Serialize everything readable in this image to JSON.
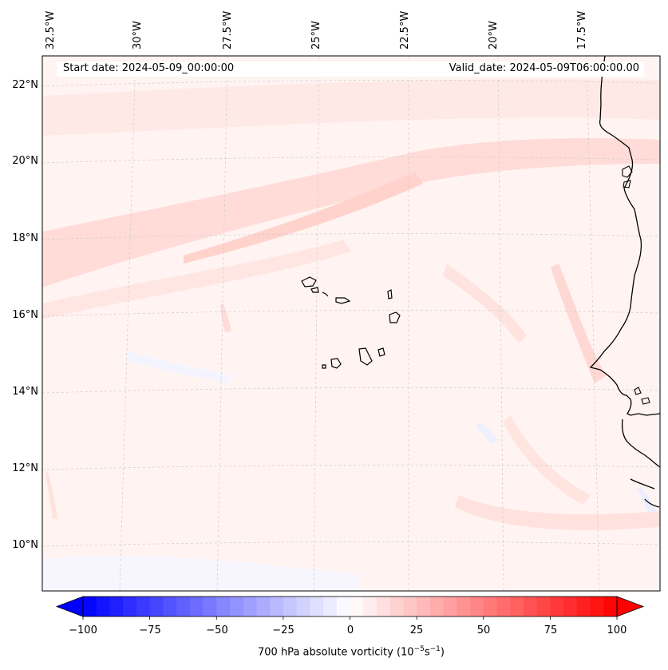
{
  "header": {
    "start_date": "Start date: 2024-05-09_00:00:00",
    "valid_date": "Valid_date: 2024-05-09T06:00:00.00"
  },
  "longitude_labels": [
    "32.5°W",
    "30°W",
    "27.5°W",
    "25°W",
    "22.5°W",
    "20°W",
    "17.5°W"
  ],
  "latitude_labels": [
    "22°N",
    "20°N",
    "18°N",
    "16°N",
    "14°N",
    "12°N",
    "10°N"
  ],
  "colorbar": {
    "ticks": [
      "−100",
      "−75",
      "−50",
      "−25",
      "0",
      "25",
      "50",
      "75",
      "100"
    ],
    "label_prefix": "700 hPa absolute vorticity (10",
    "label_exp1": "−5",
    "label_mid": "s",
    "label_exp2": "−1",
    "label_suffix": ")",
    "min_color": "#0000ff",
    "mid_color": "#ffffff",
    "max_color": "#ff0000"
  },
  "map": {
    "field_background": "#fff4f2",
    "coastline_color": "#000000",
    "gridline_color": "#cccccc",
    "features": [
      "West African coastline",
      "Cape Verde islands"
    ]
  }
}
